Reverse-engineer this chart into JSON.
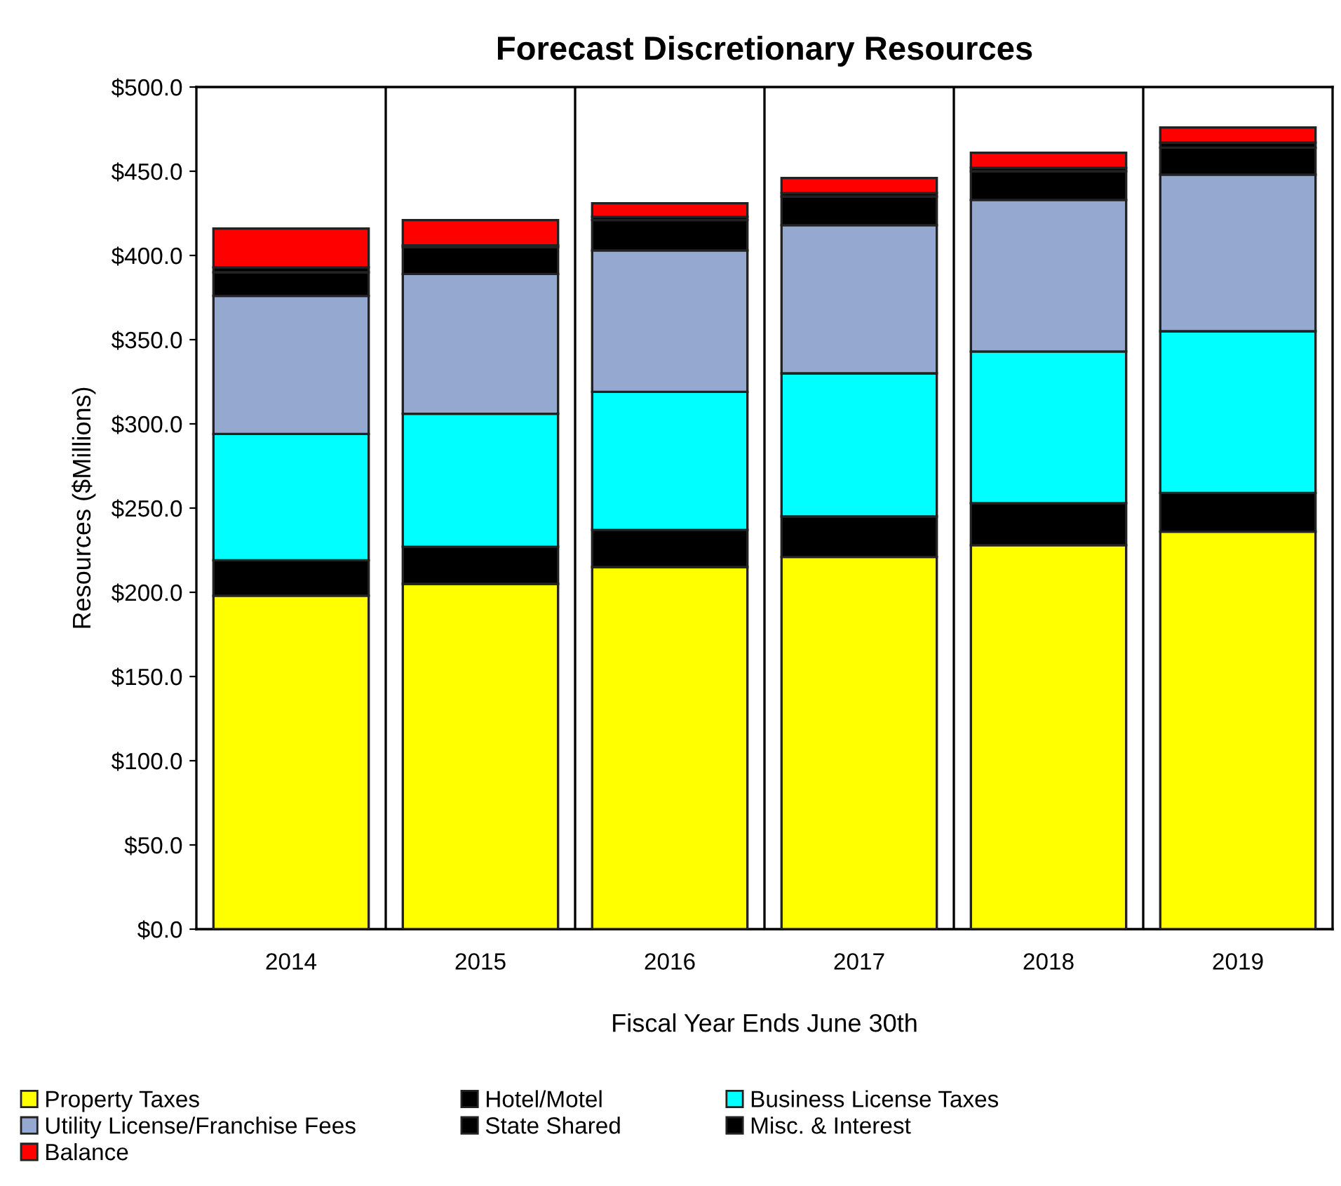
{
  "chart_data": {
    "type": "bar",
    "stacked": true,
    "title": "Forecast Discretionary Resources",
    "xlabel": "Fiscal Year Ends June 30th",
    "ylabel": "Resources ($Millions)",
    "categories": [
      "2014",
      "2015",
      "2016",
      "2017",
      "2018",
      "2019"
    ],
    "series": [
      {
        "name": "Property Taxes",
        "color": "#ffff00",
        "values": [
          198,
          205,
          215,
          221,
          228,
          236
        ]
      },
      {
        "name": "Hotel/Motel",
        "color": "#000000",
        "values": [
          21,
          22,
          22,
          24,
          25,
          23
        ]
      },
      {
        "name": "Business License Taxes",
        "color": "#00ffff",
        "values": [
          75,
          79,
          82,
          85,
          90,
          96
        ]
      },
      {
        "name": "Utility License/Franchise Fees",
        "color": "#95a8d0",
        "values": [
          82,
          83,
          84,
          88,
          90,
          93
        ]
      },
      {
        "name": "State Shared",
        "color": "#000000",
        "values": [
          14,
          16,
          18,
          17,
          17,
          16
        ]
      },
      {
        "name": "Misc. & Interest",
        "color": "#000000",
        "values": [
          3,
          1,
          2,
          2,
          2,
          3
        ]
      },
      {
        "name": "Balance",
        "color": "#ff0000",
        "values": [
          23,
          15,
          8,
          9,
          9,
          9
        ]
      }
    ],
    "ylim": [
      0,
      500
    ],
    "yticks": [
      {
        "value": 0,
        "label": "$0.0"
      },
      {
        "value": 50,
        "label": "$50.0"
      },
      {
        "value": 100,
        "label": "$100.0"
      },
      {
        "value": 150,
        "label": "$150.0"
      },
      {
        "value": 200,
        "label": "$200.0"
      },
      {
        "value": 250,
        "label": "$250.0"
      },
      {
        "value": 300,
        "label": "$300.0"
      },
      {
        "value": 350,
        "label": "$350.0"
      },
      {
        "value": 400,
        "label": "$400.0"
      },
      {
        "value": 450,
        "label": "$450.0"
      },
      {
        "value": 500,
        "label": "$500.0"
      }
    ],
    "grid": "x",
    "legend": "bottom"
  }
}
